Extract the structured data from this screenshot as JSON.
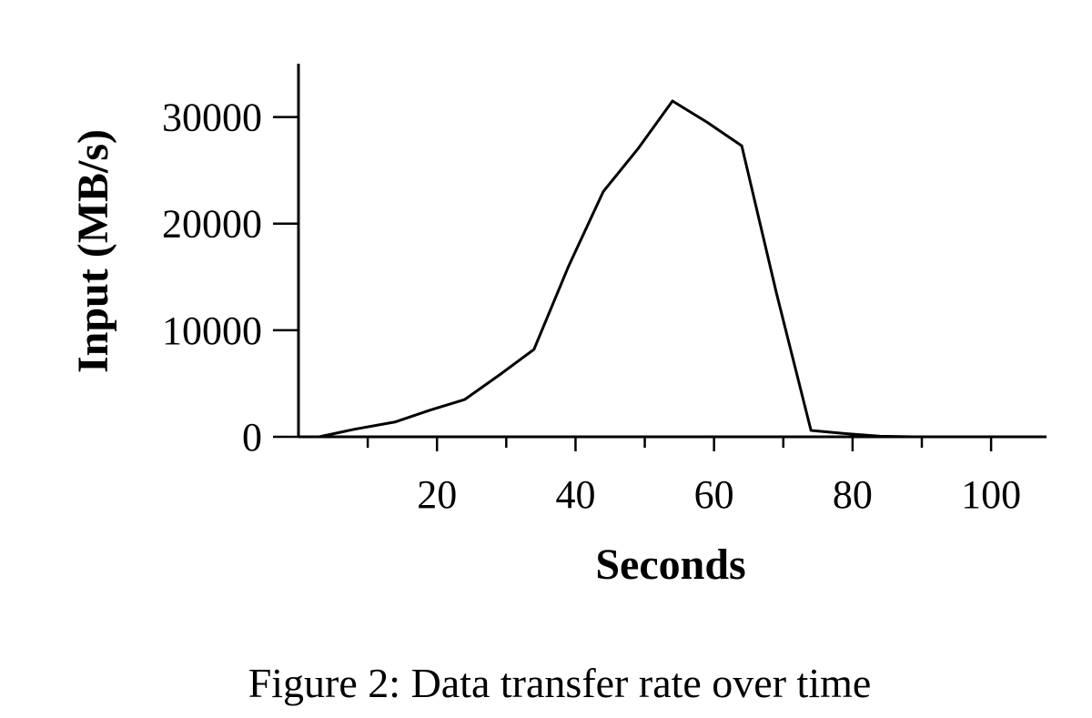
{
  "caption": "Figure 2: Data transfer rate over time",
  "chart_data": {
    "type": "line",
    "title": "",
    "xlabel": "Seconds",
    "ylabel": "Input (MB/s)",
    "xlim": [
      0,
      108
    ],
    "ylim": [
      0,
      35000
    ],
    "x_major_ticks": [
      20,
      40,
      60,
      80,
      100
    ],
    "x_minor_ticks": [
      10,
      30,
      50,
      70,
      90
    ],
    "y_ticks": [
      0,
      10000,
      20000,
      30000
    ],
    "grid": false,
    "series": [
      {
        "color": "#000000",
        "x": [
          3,
          8,
          14,
          19,
          24,
          29,
          34,
          39,
          44,
          49,
          54,
          59,
          64,
          69,
          74,
          79,
          84,
          89,
          94,
          99,
          104,
          108
        ],
        "y": [
          0,
          700,
          1400,
          2500,
          3500,
          5800,
          8200,
          16000,
          23000,
          27000,
          31500,
          29500,
          27300,
          13500,
          600,
          300,
          50,
          0,
          0,
          0,
          0,
          0
        ]
      }
    ]
  }
}
